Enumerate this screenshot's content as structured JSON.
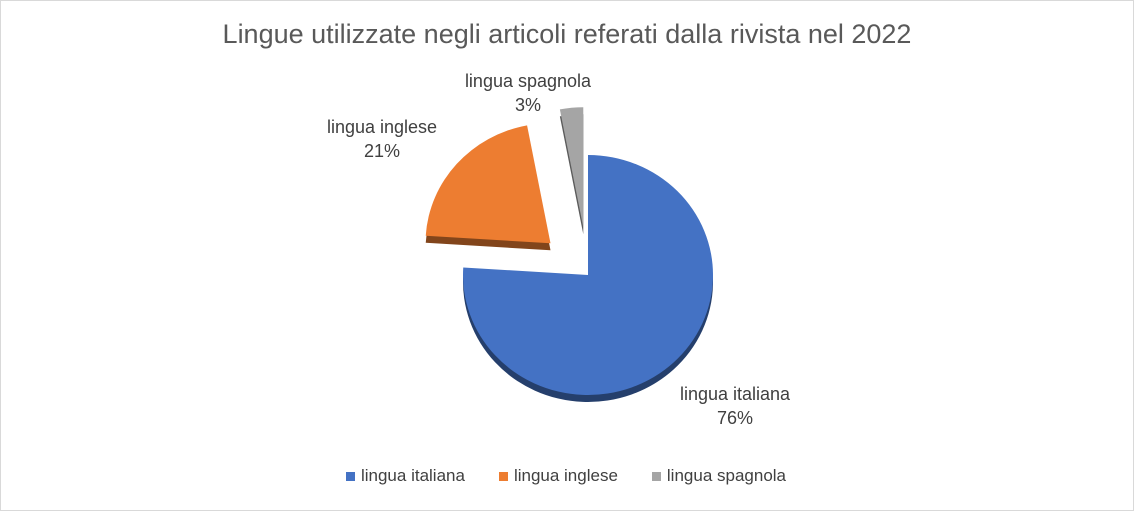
{
  "chart_data": {
    "type": "pie",
    "title": "Lingue utilizzate negli articoli referati dalla rivista nel 2022",
    "categories": [
      "lingua italiana",
      "lingua inglese",
      "lingua spagnola"
    ],
    "values": [
      76,
      21,
      3
    ],
    "data_labels": [
      "76%",
      "21%",
      "3%"
    ],
    "colors": [
      "#4472c4",
      "#ed7d31",
      "#a5a5a5"
    ],
    "exploded": true,
    "legend_position": "bottom"
  }
}
